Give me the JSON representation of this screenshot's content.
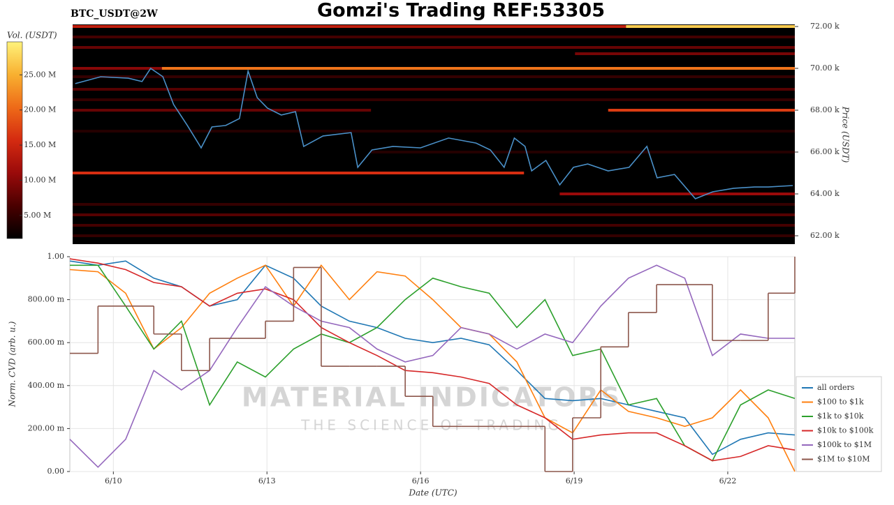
{
  "chart_data": [
    {
      "type": "heatmap",
      "title": "Gomzi's Trading REF:53305",
      "subtitle": "BTC_USDT@2W",
      "colorbar_label": "Vol. (USDT)",
      "ylabel": "Price (USDT)",
      "xlim": [
        9.15,
        23.31
      ],
      "ylim": [
        61.6,
        72.1
      ],
      "yticks": [
        {
          "value": 62,
          "label": "62.00 k"
        },
        {
          "value": 64,
          "label": "64.00 k"
        },
        {
          "value": 66,
          "label": "66.00 k"
        },
        {
          "value": 68,
          "label": "68.00 k"
        },
        {
          "value": 70,
          "label": "70.00 k"
        },
        {
          "value": 72,
          "label": "72.00 k"
        }
      ],
      "vlim": [
        1.7,
        29.7
      ],
      "cticks": [
        {
          "value": 5,
          "label": "5.00 M"
        },
        {
          "value": 10,
          "label": "10.00 M"
        },
        {
          "value": 15,
          "label": "15.00 M"
        },
        {
          "value": 20,
          "label": "20.00 M"
        },
        {
          "value": 25,
          "label": "25.00 M"
        }
      ],
      "colormap": [
        "#000000",
        "#4a0000",
        "#9a0a0a",
        "#d42a10",
        "#ee6a18",
        "#f8b030",
        "#fff27a"
      ],
      "levels": [
        {
          "price": 72.0,
          "start": 9.15,
          "end": 20.0,
          "volume": 14
        },
        {
          "price": 72.0,
          "start": 20.0,
          "end": 23.31,
          "volume": 27
        },
        {
          "price": 71.5,
          "start": 9.15,
          "end": 23.31,
          "volume": 6
        },
        {
          "price": 71.0,
          "start": 9.15,
          "end": 23.31,
          "volume": 8
        },
        {
          "price": 70.7,
          "start": 19.0,
          "end": 23.31,
          "volume": 9
        },
        {
          "price": 70.0,
          "start": 9.15,
          "end": 10.9,
          "volume": 10
        },
        {
          "price": 70.0,
          "start": 10.9,
          "end": 23.31,
          "volume": 21
        },
        {
          "price": 69.6,
          "start": 9.15,
          "end": 23.31,
          "volume": 5
        },
        {
          "price": 69.0,
          "start": 9.15,
          "end": 23.31,
          "volume": 7
        },
        {
          "price": 68.5,
          "start": 9.15,
          "end": 23.31,
          "volume": 5
        },
        {
          "price": 68.0,
          "start": 9.15,
          "end": 15.0,
          "volume": 8
        },
        {
          "price": 68.0,
          "start": 19.65,
          "end": 23.31,
          "volume": 17
        },
        {
          "price": 67.0,
          "start": 9.15,
          "end": 23.31,
          "volume": 4
        },
        {
          "price": 66.0,
          "start": 15.0,
          "end": 23.31,
          "volume": 4
        },
        {
          "price": 65.0,
          "start": 9.15,
          "end": 18.0,
          "volume": 16
        },
        {
          "price": 64.0,
          "start": 18.7,
          "end": 23.31,
          "volume": 11
        },
        {
          "price": 63.5,
          "start": 9.15,
          "end": 23.31,
          "volume": 5
        },
        {
          "price": 63.0,
          "start": 9.15,
          "end": 23.31,
          "volume": 7
        },
        {
          "price": 62.5,
          "start": 9.15,
          "end": 23.31,
          "volume": 6
        },
        {
          "price": 62.0,
          "start": 9.15,
          "end": 23.31,
          "volume": 5
        }
      ],
      "price_line": {
        "color": "#4a90c8",
        "x": [
          9.2,
          9.7,
          10.24,
          10.51,
          10.68,
          10.92,
          11.13,
          11.4,
          11.67,
          11.88,
          12.15,
          12.42,
          12.59,
          12.77,
          12.97,
          13.24,
          13.52,
          13.68,
          14.06,
          14.61,
          14.74,
          15.02,
          15.43,
          15.97,
          16.52,
          17.06,
          17.34,
          17.61,
          17.81,
          18.02,
          18.15,
          18.43,
          18.7,
          18.97,
          19.25,
          19.65,
          20.06,
          20.41,
          20.61,
          20.95,
          21.36,
          21.7,
          22.11,
          22.52,
          22.79,
          23.27
        ],
        "values": [
          69.27,
          69.6,
          69.53,
          69.37,
          70.0,
          69.6,
          68.27,
          67.27,
          66.2,
          67.2,
          67.27,
          67.6,
          69.87,
          68.6,
          68.1,
          67.77,
          67.93,
          66.27,
          66.77,
          66.93,
          65.27,
          66.1,
          66.27,
          66.2,
          66.67,
          66.43,
          66.1,
          65.27,
          66.67,
          66.27,
          65.1,
          65.6,
          64.43,
          65.27,
          65.43,
          65.1,
          65.27,
          66.27,
          64.77,
          64.93,
          63.77,
          64.1,
          64.27,
          64.33,
          64.33,
          64.4
        ]
      }
    },
    {
      "type": "line",
      "xlabel": "Date (UTC)",
      "ylabel": "Norm. CVD (arb. u.)",
      "watermark": [
        "MATERIAL INDICATORS",
        "THE SCIENCE OF TRADING"
      ],
      "xlim": [
        9.15,
        23.31
      ],
      "ylim": [
        0,
        1
      ],
      "xticks": [
        {
          "value": 10,
          "label": "6/10"
        },
        {
          "value": 13,
          "label": "6/13"
        },
        {
          "value": 16,
          "label": "6/16"
        },
        {
          "value": 19,
          "label": "6/19"
        },
        {
          "value": 22,
          "label": "6/22"
        }
      ],
      "yticks": [
        {
          "value": 0,
          "label": "0.00"
        },
        {
          "value": 0.2,
          "label": "200.00 m"
        },
        {
          "value": 0.4,
          "label": "400.00 m"
        },
        {
          "value": 0.6,
          "label": "600.00 m"
        },
        {
          "value": 0.8,
          "label": "800.00 m"
        },
        {
          "value": 1,
          "label": "1.00"
        }
      ],
      "grid": true,
      "x": [
        9.15,
        9.7,
        10.24,
        10.79,
        11.33,
        11.88,
        12.42,
        12.97,
        13.52,
        14.06,
        14.61,
        15.15,
        15.7,
        16.24,
        16.79,
        17.34,
        17.88,
        18.43,
        18.97,
        19.52,
        20.06,
        20.61,
        21.16,
        21.7,
        22.25,
        22.79,
        23.31
      ],
      "series": [
        {
          "name": "all orders",
          "color": "#1f77b4",
          "values": [
            0.98,
            0.96,
            0.98,
            0.9,
            0.86,
            0.77,
            0.8,
            0.96,
            0.9,
            0.77,
            0.7,
            0.67,
            0.62,
            0.6,
            0.62,
            0.59,
            0.47,
            0.34,
            0.33,
            0.34,
            0.31,
            0.28,
            0.25,
            0.08,
            0.15,
            0.18,
            0.17
          ]
        },
        {
          "name": "$100 to $1k",
          "color": "#ff7f0e",
          "values": [
            0.94,
            0.93,
            0.83,
            0.57,
            0.67,
            0.83,
            0.9,
            0.96,
            0.77,
            0.96,
            0.8,
            0.93,
            0.91,
            0.8,
            0.67,
            0.64,
            0.51,
            0.25,
            0.18,
            0.38,
            0.28,
            0.25,
            0.21,
            0.25,
            0.38,
            0.25,
            0
          ]
        },
        {
          "name": "$1k to $10k",
          "color": "#2ca02c",
          "values": [
            0.96,
            0.96,
            0.77,
            0.57,
            0.7,
            0.31,
            0.51,
            0.44,
            0.57,
            0.64,
            0.6,
            0.67,
            0.8,
            0.9,
            0.86,
            0.83,
            0.67,
            0.8,
            0.54,
            0.57,
            0.31,
            0.34,
            0.12,
            0.05,
            0.31,
            0.38,
            0.34
          ]
        },
        {
          "name": "$10k to $100k",
          "color": "#d62728",
          "values": [
            0.99,
            0.97,
            0.94,
            0.88,
            0.86,
            0.77,
            0.83,
            0.85,
            0.8,
            0.67,
            0.6,
            0.54,
            0.47,
            0.46,
            0.44,
            0.41,
            0.31,
            0.25,
            0.15,
            0.17,
            0.18,
            0.18,
            0.12,
            0.05,
            0.07,
            0.12,
            0.1
          ]
        },
        {
          "name": "$100k to $1M",
          "color": "#9467bd",
          "values": [
            0.15,
            0.02,
            0.15,
            0.47,
            0.38,
            0.47,
            0.67,
            0.86,
            0.77,
            0.7,
            0.67,
            0.57,
            0.51,
            0.54,
            0.67,
            0.64,
            0.57,
            0.64,
            0.6,
            0.77,
            0.9,
            0.96,
            0.9,
            0.54,
            0.64,
            0.62,
            0.62
          ]
        },
        {
          "name": "$1M to $10M",
          "color": "#8c564b",
          "step": true,
          "values": [
            0.55,
            0.77,
            0.77,
            0.64,
            0.47,
            0.62,
            0.62,
            0.7,
            0.95,
            0.49,
            0.49,
            0.49,
            0.35,
            0.21,
            0.21,
            0.21,
            0.21,
            0,
            0.25,
            0.58,
            0.74,
            0.87,
            0.87,
            0.61,
            0.61,
            0.83,
            1
          ]
        }
      ]
    }
  ]
}
